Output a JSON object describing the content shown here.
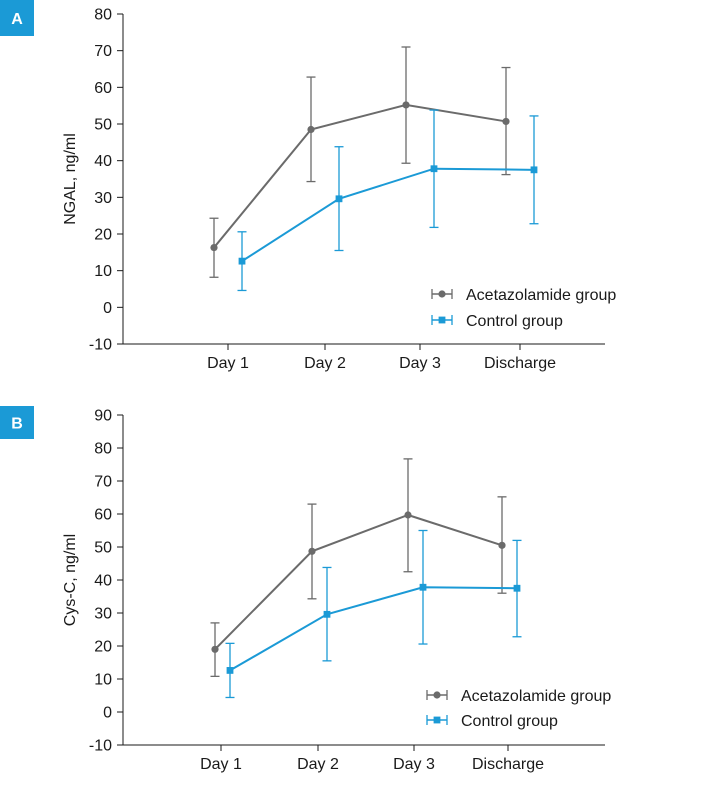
{
  "colors": {
    "badge": "#1b9ad6",
    "acetazolamide": "#6b6b6b",
    "control": "#1b9ad6",
    "axis": "#1a1a1a"
  },
  "chart_data": [
    {
      "panel": "A",
      "type": "line",
      "ylabel": "NGAL, ng/ml",
      "xlabel": "",
      "categories": [
        "Day 1",
        "Day 2",
        "Day 3",
        "Discharge"
      ],
      "ylim": [
        -10,
        80
      ],
      "yticks": [
        -10,
        0,
        10,
        20,
        30,
        40,
        50,
        60,
        70,
        80
      ],
      "legend_position": "bottom-right",
      "series": [
        {
          "name": "Acetazolamide group",
          "marker": "circle",
          "color": "#6b6b6b",
          "values": [
            16.3,
            48.5,
            55.2,
            50.7
          ],
          "error_low": [
            8.2,
            34.3,
            39.3,
            36.2
          ],
          "error_high": [
            24.3,
            62.8,
            71.0,
            65.4
          ]
        },
        {
          "name": "Control group",
          "marker": "square",
          "color": "#1b9ad6",
          "values": [
            12.6,
            29.6,
            37.8,
            37.5
          ],
          "error_low": [
            4.6,
            15.5,
            21.8,
            22.8
          ],
          "error_high": [
            20.6,
            43.8,
            53.8,
            52.2
          ]
        }
      ]
    },
    {
      "panel": "B",
      "type": "line",
      "ylabel": "Cys-C, ng/ml",
      "xlabel": "",
      "categories": [
        "Day 1",
        "Day 2",
        "Day 3",
        "Discharge"
      ],
      "ylim": [
        -10,
        90
      ],
      "yticks": [
        -10,
        0,
        10,
        20,
        30,
        40,
        50,
        60,
        70,
        80,
        90
      ],
      "legend_position": "bottom-right",
      "series": [
        {
          "name": "Acetazolamide group",
          "marker": "circle",
          "color": "#6b6b6b",
          "values": [
            19.0,
            48.7,
            59.7,
            50.5
          ],
          "error_low": [
            10.8,
            34.3,
            42.5,
            36.0
          ],
          "error_high": [
            27.0,
            63.0,
            76.7,
            65.2
          ]
        },
        {
          "name": "Control group",
          "marker": "square",
          "color": "#1b9ad6",
          "values": [
            12.6,
            29.6,
            37.8,
            37.5
          ],
          "error_low": [
            4.4,
            15.5,
            20.6,
            22.8
          ],
          "error_high": [
            20.8,
            43.8,
            55.0,
            52.0
          ]
        }
      ]
    }
  ]
}
